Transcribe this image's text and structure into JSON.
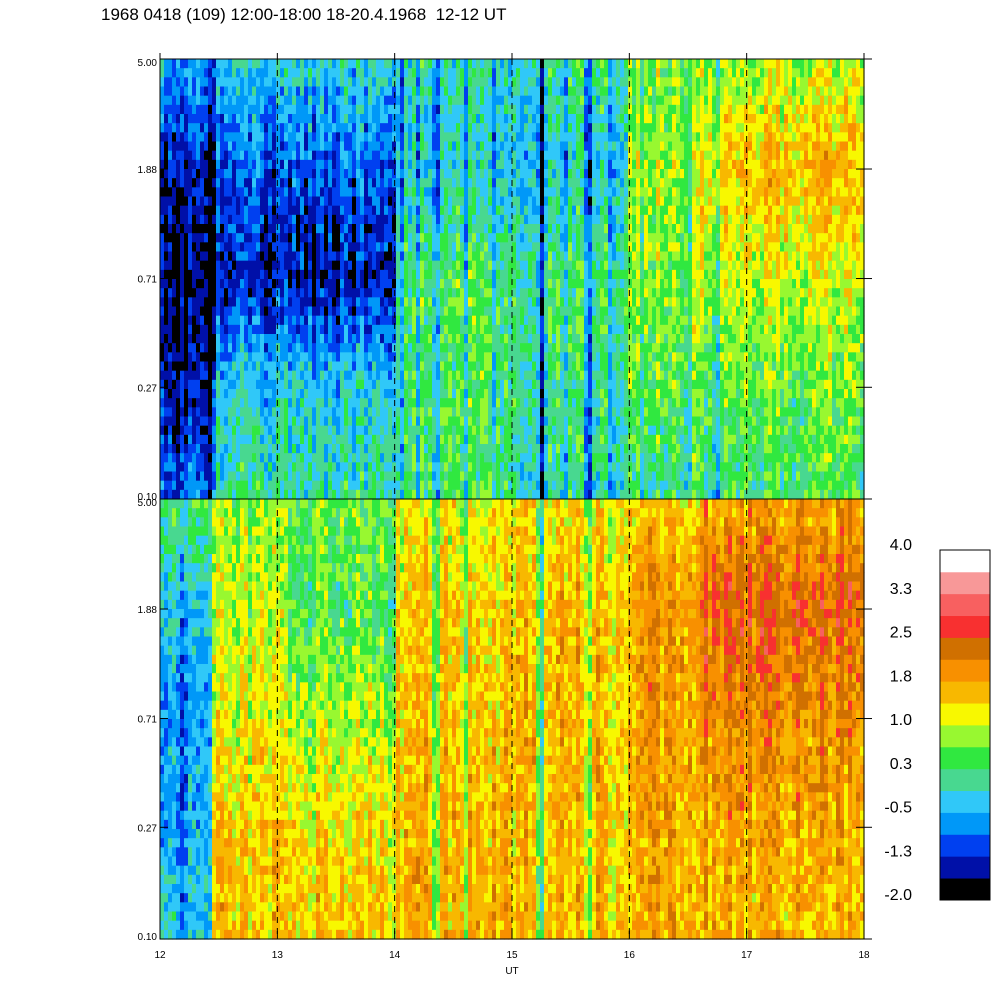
{
  "title": "1968 0418 (109) 12:00-18:00 18-20.4.1968  12-12 UT",
  "chart_data": {
    "type": "heatmap",
    "xlabel": "UT",
    "x_ticks": [
      "12",
      "13",
      "14",
      "15",
      "16",
      "17",
      "18"
    ],
    "xlim": [
      12,
      18
    ],
    "y_scale": "log",
    "ylim": [
      0.1,
      5.0
    ],
    "y_ticks": [
      "0.10",
      "0.27",
      "0.71",
      "1.88",
      "5.00"
    ],
    "dashed_vertical_lines_at": [
      13,
      14,
      15,
      16,
      17
    ],
    "panels": [
      {
        "name": "upper",
        "profiles": [
          {
            "t0": 12.0,
            "t1": 12.45,
            "v": [
              -0.9,
              -1.5,
              -1.7,
              -1.4,
              -0.6
            ]
          },
          {
            "t0": 12.45,
            "t1": 13.1,
            "v": [
              0.1,
              -0.3,
              -1.4,
              -1.0,
              -0.3
            ]
          },
          {
            "t0": 13.1,
            "t1": 14.0,
            "v": [
              0.0,
              -0.3,
              -1.5,
              -1.0,
              -0.2
            ]
          },
          {
            "t0": 14.0,
            "t1": 15.0,
            "v": [
              0.3,
              0.4,
              0.4,
              -0.2,
              0.0
            ]
          },
          {
            "t0": 15.0,
            "t1": 15.5,
            "v": [
              0.0,
              0.2,
              0.3,
              -0.3,
              0.1
            ]
          },
          {
            "t0": 15.5,
            "t1": 16.0,
            "v": [
              0.0,
              0.2,
              0.3,
              -0.2,
              0.3
            ]
          },
          {
            "t0": 16.0,
            "t1": 16.6,
            "v": [
              0.2,
              0.6,
              0.8,
              0.9,
              0.7
            ]
          },
          {
            "t0": 16.6,
            "t1": 18.0,
            "v": [
              0.3,
              0.6,
              1.0,
              1.6,
              0.9
            ]
          }
        ],
        "dips": [
          {
            "t": 12.45,
            "w": 0.03,
            "d": -1.0
          },
          {
            "t": 14.05,
            "w": 0.04,
            "d": -1.2
          },
          {
            "t": 14.2,
            "w": 0.03,
            "d": -1.0
          },
          {
            "t": 14.35,
            "w": 0.04,
            "d": -1.3
          },
          {
            "t": 14.6,
            "w": 0.03,
            "d": -1.0
          },
          {
            "t": 14.85,
            "w": 0.03,
            "d": -1.0
          },
          {
            "t": 15.25,
            "w": 0.05,
            "d": -1.6
          },
          {
            "t": 15.45,
            "w": 0.03,
            "d": -0.9
          },
          {
            "t": 15.65,
            "w": 0.04,
            "d": -1.4
          },
          {
            "t": 15.85,
            "w": 0.04,
            "d": -1.3
          },
          {
            "t": 16.1,
            "w": 0.03,
            "d": -0.8
          },
          {
            "t": 16.5,
            "w": 0.03,
            "d": -0.9
          },
          {
            "t": 16.75,
            "w": 0.04,
            "d": -1.3
          }
        ]
      },
      {
        "name": "lower",
        "profiles": [
          {
            "t0": 12.0,
            "t1": 12.45,
            "v": [
              -0.3,
              -0.6,
              -0.7,
              -0.4,
              0.3
            ]
          },
          {
            "t0": 12.45,
            "t1": 13.1,
            "v": [
              1.5,
              1.4,
              1.1,
              0.9,
              0.7
            ]
          },
          {
            "t0": 13.1,
            "t1": 14.0,
            "v": [
              1.5,
              1.3,
              0.9,
              0.4,
              0.6
            ]
          },
          {
            "t0": 14.0,
            "t1": 15.0,
            "v": [
              1.6,
              1.6,
              1.5,
              1.4,
              1.2
            ]
          },
          {
            "t0": 15.0,
            "t1": 16.0,
            "v": [
              1.6,
              1.6,
              1.6,
              1.6,
              1.3
            ]
          },
          {
            "t0": 16.0,
            "t1": 16.6,
            "v": [
              1.7,
              1.7,
              1.8,
              1.9,
              1.4
            ]
          },
          {
            "t0": 16.6,
            "t1": 18.0,
            "v": [
              1.6,
              1.8,
              2.0,
              2.4,
              1.8
            ]
          }
        ],
        "dips": [
          {
            "t": 12.2,
            "w": 0.04,
            "d": -0.9
          },
          {
            "t": 14.35,
            "w": 0.04,
            "d": -1.4
          },
          {
            "t": 14.6,
            "w": 0.03,
            "d": -1.0
          },
          {
            "t": 15.25,
            "w": 0.05,
            "d": -1.6
          },
          {
            "t": 15.65,
            "w": 0.04,
            "d": -1.2
          },
          {
            "t": 15.85,
            "w": 0.03,
            "d": -0.8
          }
        ]
      }
    ],
    "colorbar": {
      "labels": [
        "4.0",
        "3.3",
        "2.5",
        "1.8",
        "1.0",
        "0.3",
        "-0.5",
        "-1.3",
        "-2.0"
      ],
      "vmin": -2.0,
      "vmax": 4.0,
      "colors": [
        "#000000",
        "#0010a8",
        "#0040f0",
        "#0098f8",
        "#30c8f8",
        "#48d890",
        "#30e840",
        "#98f830",
        "#f8f800",
        "#f8b800",
        "#f89000",
        "#d07000",
        "#f83030",
        "#f86060",
        "#f89898",
        "#ffffff"
      ]
    }
  }
}
